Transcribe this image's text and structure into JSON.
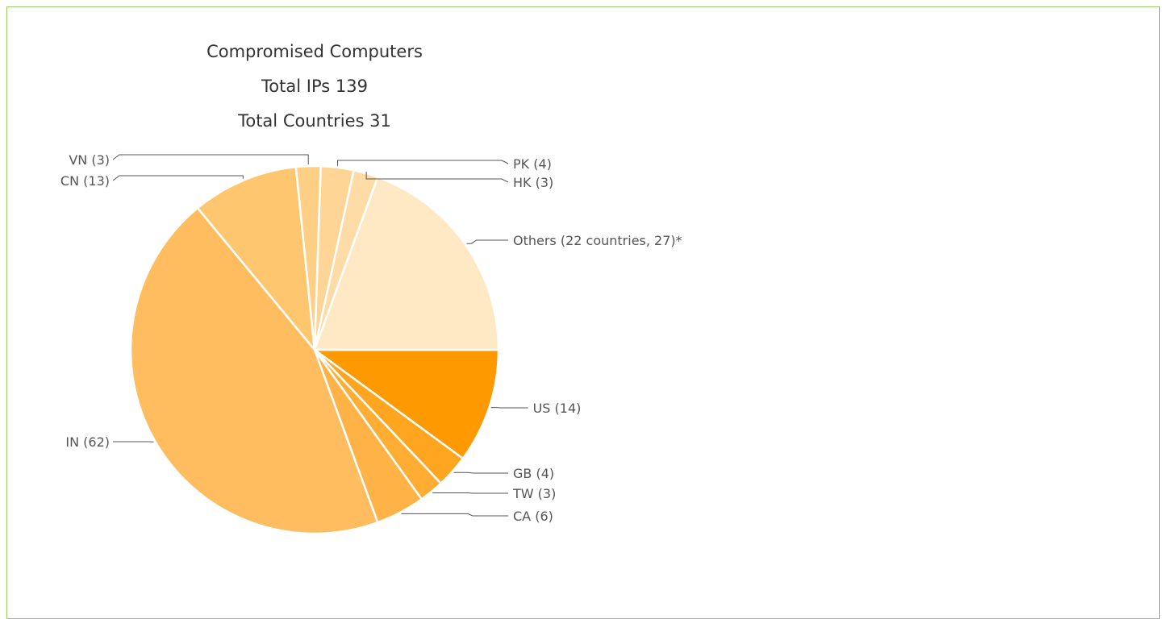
{
  "chart_data": {
    "type": "pie",
    "title": [
      "Compromised Computers",
      "Total IPs 139",
      "Total Countries 31"
    ],
    "slices": [
      {
        "label": "US",
        "display": "US  (14)",
        "value": 14,
        "color": "#ff9900"
      },
      {
        "label": "GB",
        "display": "GB  (4)",
        "value": 4,
        "color": "#ffa51f"
      },
      {
        "label": "TW",
        "display": "TW  (3)",
        "value": 3,
        "color": "#ffad33"
      },
      {
        "label": "CA",
        "display": "CA  (6)",
        "value": 6,
        "color": "#ffb347"
      },
      {
        "label": "IN",
        "display": "IN  (62)",
        "value": 62,
        "color": "#ffbd60"
      },
      {
        "label": "CN",
        "display": "CN  (13)",
        "value": 13,
        "color": "#ffc670"
      },
      {
        "label": "VN",
        "display": "VN  (3)",
        "value": 3,
        "color": "#ffcf85"
      },
      {
        "label": "PK",
        "display": "PK  (4)",
        "value": 4,
        "color": "#ffd595"
      },
      {
        "label": "HK",
        "display": "HK  (3)",
        "value": 3,
        "color": "#ffdba5"
      },
      {
        "label": "Others",
        "display": "Others (22 countries, 27)*",
        "value": 27,
        "color": "#ffe8c4"
      }
    ]
  }
}
